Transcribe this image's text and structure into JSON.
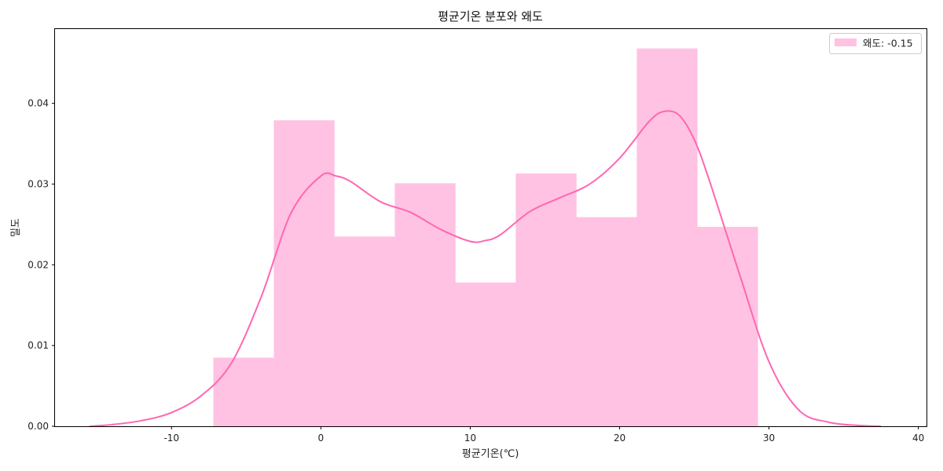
{
  "chart_data": {
    "type": "bar",
    "title": "평균기온 분포와 왜도",
    "xlabel": "평균기온(℃)",
    "ylabel": "밀도",
    "xlim": [
      -17.8,
      40.6
    ],
    "ylim": [
      0,
      0.0492
    ],
    "xticks": [
      -10,
      0,
      10,
      20,
      30,
      40
    ],
    "xtick_labels": [
      "-10",
      "0",
      "10",
      "20",
      "30",
      "40"
    ],
    "yticks": [
      0.0,
      0.01,
      0.02,
      0.03,
      0.04
    ],
    "ytick_labels": [
      "0.00",
      "0.01",
      "0.02",
      "0.03",
      "0.04"
    ],
    "grid": false,
    "legend": {
      "placement": "top-right",
      "entries": [
        "왜도: -0.15"
      ]
    },
    "histogram": {
      "name": "왜도: -0.15",
      "bin_edges": [
        -7.2,
        -3.15,
        0.9,
        4.95,
        9.0,
        13.05,
        17.1,
        21.15,
        25.2,
        29.25
      ],
      "densities": [
        0.0085,
        0.0379,
        0.0235,
        0.0301,
        0.0178,
        0.0313,
        0.0259,
        0.0468,
        0.0247
      ],
      "color": "#ffc2e2"
    },
    "kde": {
      "color": "#ff66b2",
      "x": [
        -15.5,
        -14,
        -12,
        -10,
        -8,
        -6,
        -4,
        -2,
        0,
        1,
        2,
        4,
        6,
        8,
        10,
        11,
        12,
        14,
        16,
        18,
        20,
        22,
        23,
        24,
        25,
        26,
        28,
        30,
        32,
        34,
        36,
        37.5
      ],
      "y": [
        0.0,
        0.0002,
        0.0007,
        0.0017,
        0.0038,
        0.0078,
        0.016,
        0.0264,
        0.031,
        0.031,
        0.0303,
        0.0278,
        0.0265,
        0.0244,
        0.0229,
        0.023,
        0.0237,
        0.0266,
        0.0283,
        0.03,
        0.0332,
        0.0378,
        0.039,
        0.0385,
        0.0355,
        0.0305,
        0.019,
        0.008,
        0.002,
        0.0005,
        0.0001,
        0.0
      ]
    }
  }
}
